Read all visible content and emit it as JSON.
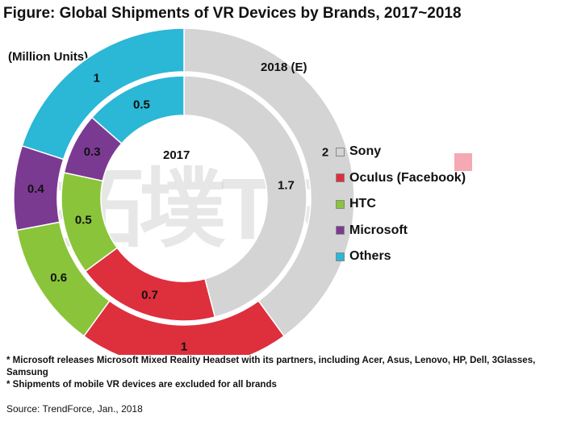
{
  "title": "Figure: Global Shipments of VR Devices by Brands, 2017~2018",
  "unit": "(Million Units)",
  "watermark": "拓墣TRI",
  "chart_data": {
    "type": "pie",
    "variant": "double-doughnut",
    "categories": [
      "Sony",
      "Oculus (Facebook)",
      "HTC",
      "Microsoft",
      "Others"
    ],
    "colors": [
      "#d4d4d4",
      "#de2f3d",
      "#8ac43a",
      "#7b3a92",
      "#2bb7d6"
    ],
    "series": [
      {
        "name": "2017",
        "ring": "inner",
        "values": [
          1.7,
          0.7,
          0.5,
          0.3,
          0.5
        ]
      },
      {
        "name": "2018 (E)",
        "ring": "outer",
        "values": [
          2,
          1,
          0.6,
          0.4,
          1
        ]
      }
    ],
    "legend_placement": "right"
  },
  "notes": [
    "* Microsoft releases Microsoft Mixed Reality Headset with its partners, including Acer, Asus, Lenovo, HP, Dell, 3Glasses, Samsung",
    "* Shipments of mobile VR devices are excluded for all brands"
  ],
  "source": "Source: TrendForce, Jan., 2018"
}
